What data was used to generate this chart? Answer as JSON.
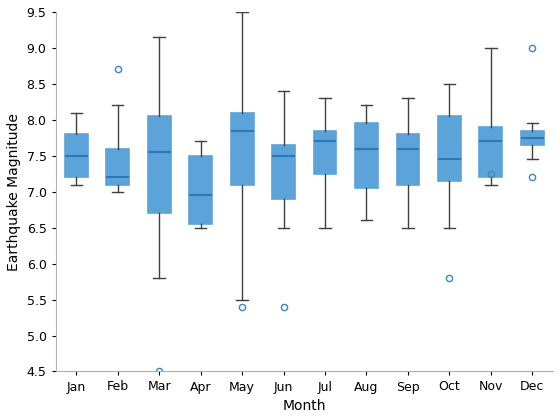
{
  "months": [
    "Jan",
    "Feb",
    "Mar",
    "Apr",
    "May",
    "Jun",
    "Jul",
    "Aug",
    "Sep",
    "Oct",
    "Nov",
    "Dec"
  ],
  "boxes": [
    {
      "q1": 7.2,
      "median": 7.5,
      "q3": 7.8,
      "whisker_low": 7.1,
      "whisker_high": 8.1,
      "fliers": []
    },
    {
      "q1": 7.1,
      "median": 7.2,
      "q3": 7.6,
      "whisker_low": 7.0,
      "whisker_high": 8.2,
      "fliers": [
        8.7
      ]
    },
    {
      "q1": 6.7,
      "median": 7.55,
      "q3": 8.05,
      "whisker_low": 5.8,
      "whisker_high": 9.15,
      "fliers": [
        4.5
      ]
    },
    {
      "q1": 6.55,
      "median": 6.95,
      "q3": 7.5,
      "whisker_low": 6.5,
      "whisker_high": 7.7,
      "fliers": []
    },
    {
      "q1": 7.1,
      "median": 7.85,
      "q3": 8.1,
      "whisker_low": 5.5,
      "whisker_high": 9.5,
      "fliers": [
        5.4
      ]
    },
    {
      "q1": 6.9,
      "median": 7.5,
      "q3": 7.65,
      "whisker_low": 6.5,
      "whisker_high": 8.4,
      "fliers": [
        5.4
      ]
    },
    {
      "q1": 7.25,
      "median": 7.7,
      "q3": 7.85,
      "whisker_low": 6.5,
      "whisker_high": 8.3,
      "fliers": []
    },
    {
      "q1": 7.05,
      "median": 7.6,
      "q3": 7.95,
      "whisker_low": 6.6,
      "whisker_high": 8.2,
      "fliers": []
    },
    {
      "q1": 7.1,
      "median": 7.6,
      "q3": 7.8,
      "whisker_low": 6.5,
      "whisker_high": 8.3,
      "fliers": []
    },
    {
      "q1": 7.15,
      "median": 7.45,
      "q3": 8.05,
      "whisker_low": 6.5,
      "whisker_high": 8.5,
      "fliers": [
        5.8
      ]
    },
    {
      "q1": 7.2,
      "median": 7.7,
      "q3": 7.9,
      "whisker_low": 7.1,
      "whisker_high": 9.0,
      "fliers": [
        7.25
      ]
    },
    {
      "q1": 7.65,
      "median": 7.75,
      "q3": 7.85,
      "whisker_low": 7.45,
      "whisker_high": 7.95,
      "fliers": [
        9.0,
        7.2
      ]
    }
  ],
  "xlabel": "Month",
  "ylabel": "Earthquake Magnitude",
  "ylim": [
    4.5,
    9.5
  ],
  "yticks": [
    4.5,
    5.0,
    5.5,
    6.0,
    6.5,
    7.0,
    7.5,
    8.0,
    8.5,
    9.0,
    9.5
  ],
  "box_facecolor": "#cce0f0",
  "box_edgecolor": "#5ba3d9",
  "median_color": "#2e75b6",
  "whisker_color": "#404040",
  "cap_color": "#404040",
  "flier_color": "#3a86c8",
  "background_color": "#ffffff",
  "spine_color": "#b0b0b0",
  "figsize": [
    5.6,
    4.2
  ],
  "dpi": 100
}
